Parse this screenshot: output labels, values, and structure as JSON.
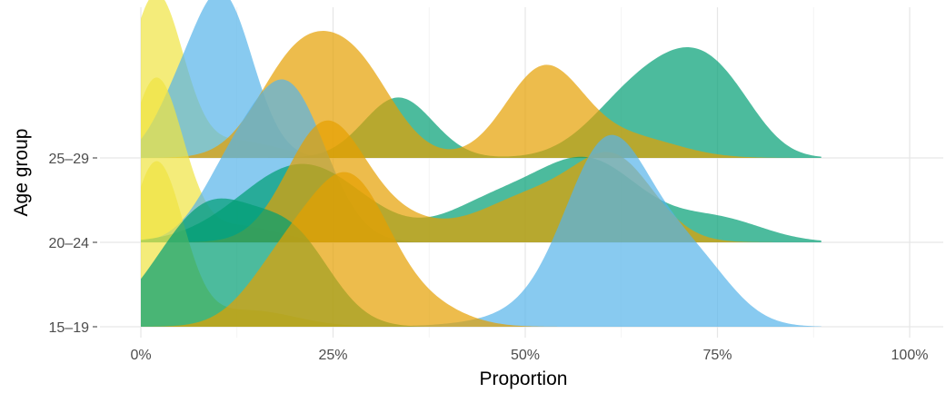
{
  "chart_data": {
    "type": "ridgeline",
    "title": "",
    "xlabel": "Proportion",
    "ylabel": "Age group",
    "xlim": [
      0,
      100
    ],
    "x_ticks": [
      0,
      25,
      50,
      75,
      100
    ],
    "x_tick_labels": [
      "0%",
      "25%",
      "50%",
      "75%",
      "100%"
    ],
    "categories": [
      "15–19",
      "20–24",
      "25–29"
    ],
    "grid": true,
    "legend": "none",
    "series": [
      {
        "color": "#F0E442",
        "densities": [
          {
            "category": "15–19",
            "peaks": [
              [
                2,
                3.5,
                1.0
              ],
              [
                14,
                6,
                0.1
              ]
            ]
          },
          {
            "category": "20–24",
            "peaks": [
              [
                2,
                3.5,
                1.0
              ],
              [
                13,
                5,
                0.1
              ]
            ]
          },
          {
            "category": "25–29",
            "peaks": [
              [
                2,
                3.5,
                1.0
              ],
              [
                13,
                5,
                0.1
              ]
            ]
          }
        ]
      },
      {
        "color": "#56B4E9",
        "densities": [
          {
            "category": "15–19",
            "peaks": [
              [
                61,
                5.5,
                1.0
              ],
              [
                72,
                5,
                0.35
              ],
              [
                58,
                9,
                0.15
              ]
            ]
          },
          {
            "category": "20–24",
            "peaks": [
              [
                19,
                5,
                0.95
              ],
              [
                11,
                4,
                0.3
              ]
            ]
          },
          {
            "category": "25–29",
            "peaks": [
              [
                10.5,
                4,
                1.0
              ],
              [
                4,
                3,
                0.2
              ]
            ]
          }
        ]
      },
      {
        "color": "#009E73",
        "densities": [
          {
            "category": "15–19",
            "peaks": [
              [
                7,
                6,
                0.55
              ],
              [
                20,
                5,
                0.5
              ],
              [
                12,
                5,
                0.25
              ]
            ]
          },
          {
            "category": "20–24",
            "peaks": [
              [
                21,
                8,
                0.48
              ],
              [
                45,
                6,
                0.2
              ],
              [
                58,
                7,
                0.5
              ],
              [
                75,
                6,
                0.14
              ]
            ]
          },
          {
            "category": "25–29",
            "peaks": [
              [
                33.5,
                4.5,
                0.37
              ],
              [
                65,
                6,
                0.42
              ],
              [
                73,
                5,
                0.43
              ],
              [
                78,
                4,
                0.12
              ]
            ]
          }
        ]
      },
      {
        "color": "#E69F00",
        "densities": [
          {
            "category": "15–19",
            "peaks": [
              [
                19,
                5,
                0.4
              ],
              [
                27.5,
                5,
                0.82
              ],
              [
                37,
                5,
                0.12
              ]
            ]
          },
          {
            "category": "20–24",
            "peaks": [
              [
                24,
                5,
                0.72
              ],
              [
                33,
                5,
                0.12
              ],
              [
                52,
                8,
                0.3
              ],
              [
                62,
                5,
                0.4
              ]
            ]
          },
          {
            "category": "25–29",
            "peaks": [
              [
                20,
                5,
                0.55
              ],
              [
                28,
                5,
                0.52
              ],
              [
                52.5,
                5,
                0.55
              ],
              [
                64,
                6,
                0.12
              ]
            ]
          }
        ]
      }
    ]
  }
}
